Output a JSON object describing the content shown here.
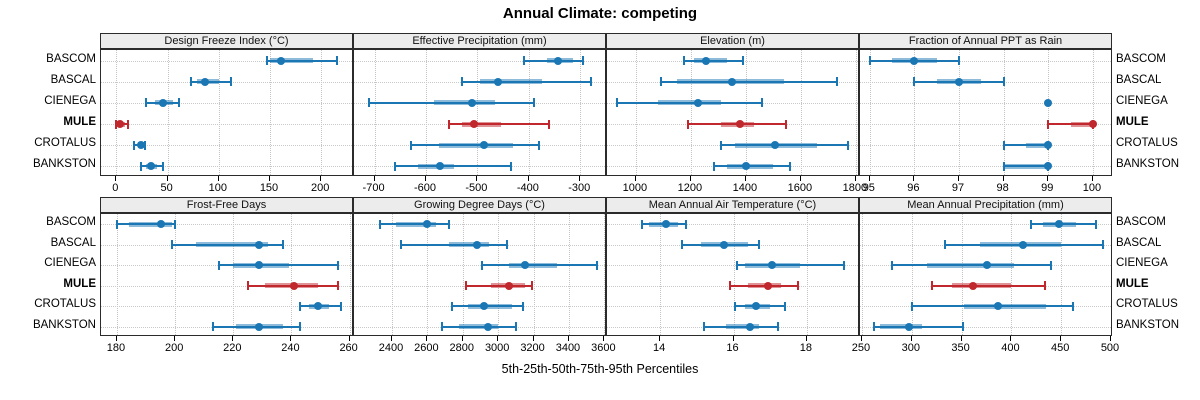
{
  "title": "Annual Climate: competing",
  "caption": "5th-25th-50th-75th-95th Percentiles",
  "colors": {
    "normal": "#1b77b4",
    "highlight": "#c0282d",
    "strip_bg": "#ececec",
    "grid": "#c3c3c3",
    "border": "#2b2b2b"
  },
  "chart_data": {
    "type": "dotplot",
    "title": "Annual Climate: competing",
    "xlabel": "5th-25th-50th-75th-95th Percentiles",
    "percentiles": [
      5,
      25,
      50,
      75,
      95
    ],
    "categories": [
      "BASCOM",
      "BASCAL",
      "CIENEGA",
      "MULE",
      "CROTALUS",
      "BANKSTON"
    ],
    "highlight": "MULE",
    "legend_position": "none",
    "grid": "dotted",
    "panels": [
      {
        "title": "Design Freeze Index (°C)",
        "row": 0,
        "col": 0,
        "xlim": [
          -15,
          232
        ],
        "xticks": [
          0,
          50,
          100,
          150,
          200
        ],
        "series": [
          {
            "name": "BASCOM",
            "values": [
              147,
              150,
              161,
              192,
              215
            ]
          },
          {
            "name": "BASCAL",
            "values": [
              73,
              79,
              87,
              100,
              112
            ]
          },
          {
            "name": "CIENEGA",
            "values": [
              29,
              38,
              46,
              55,
              61
            ]
          },
          {
            "name": "MULE",
            "values": [
              0,
              2,
              4,
              8,
              11
            ]
          },
          {
            "name": "CROTALUS",
            "values": [
              17,
              21,
              24,
              26,
              28
            ]
          },
          {
            "name": "BANKSTON",
            "values": [
              24,
              29,
              34,
              40,
              46
            ]
          }
        ]
      },
      {
        "title": "Effective Precipitation (mm)",
        "row": 0,
        "col": 1,
        "xlim": [
          -740,
          -248
        ],
        "xticks": [
          -700,
          -600,
          -500,
          -400,
          -300
        ],
        "series": [
          {
            "name": "BASCOM",
            "values": [
              -410,
              -365,
              -343,
              -315,
              -295
            ]
          },
          {
            "name": "BASCAL",
            "values": [
              -530,
              -495,
              -460,
              -375,
              -280
            ]
          },
          {
            "name": "CIENEGA",
            "values": [
              -710,
              -585,
              -510,
              -465,
              -390
            ]
          },
          {
            "name": "MULE",
            "values": [
              -555,
              -530,
              -507,
              -455,
              -360
            ]
          },
          {
            "name": "CROTALUS",
            "values": [
              -630,
              -575,
              -487,
              -430,
              -380
            ]
          },
          {
            "name": "BANKSTON",
            "values": [
              -660,
              -615,
              -572,
              -545,
              -435
            ]
          }
        ]
      },
      {
        "title": "Elevation (m)",
        "row": 0,
        "col": 2,
        "xlim": [
          895,
          1815
        ],
        "xticks": [
          1000,
          1200,
          1400,
          1600,
          1800
        ],
        "series": [
          {
            "name": "BASCOM",
            "values": [
              1175,
              1210,
              1255,
              1330,
              1390
            ]
          },
          {
            "name": "BASCAL",
            "values": [
              1090,
              1150,
              1350,
              1540,
              1730
            ]
          },
          {
            "name": "CIENEGA",
            "values": [
              930,
              1080,
              1225,
              1310,
              1460
            ]
          },
          {
            "name": "MULE",
            "values": [
              1190,
              1310,
              1380,
              1430,
              1545
            ]
          },
          {
            "name": "CROTALUS",
            "values": [
              1310,
              1360,
              1505,
              1660,
              1770
            ]
          },
          {
            "name": "BANKSTON",
            "values": [
              1285,
              1330,
              1400,
              1500,
              1560
            ]
          }
        ]
      },
      {
        "title": "Fraction of Annual PPT as Rain",
        "row": 0,
        "col": 3,
        "xlim": [
          94.78,
          100.45
        ],
        "xticks": [
          95,
          96,
          97,
          98,
          99,
          100
        ],
        "series": [
          {
            "name": "BASCOM",
            "values": [
              95,
              95.5,
              96,
              96.5,
              97
            ]
          },
          {
            "name": "BASCAL",
            "values": [
              96,
              96.5,
              97,
              97.5,
              98
            ]
          },
          {
            "name": "CIENEGA",
            "values": [
              99,
              99,
              99,
              99,
              99
            ]
          },
          {
            "name": "MULE",
            "values": [
              99,
              99.5,
              100,
              100,
              100
            ]
          },
          {
            "name": "CROTALUS",
            "values": [
              98,
              98.5,
              99,
              99,
              99
            ]
          },
          {
            "name": "BANKSTON",
            "values": [
              98,
              98,
              99,
              99,
              99
            ]
          }
        ]
      },
      {
        "title": "Frost-Free Days",
        "row": 1,
        "col": 0,
        "xlim": [
          174.5,
          261.5
        ],
        "xticks": [
          180,
          200,
          220,
          240,
          260
        ],
        "series": [
          {
            "name": "BASCOM",
            "values": [
              180,
              184,
              195,
              199,
              200
            ]
          },
          {
            "name": "BASCAL",
            "values": [
              199,
              207,
              229,
              232,
              237
            ]
          },
          {
            "name": "CIENEGA",
            "values": [
              215,
              220,
              229,
              239,
              256
            ]
          },
          {
            "name": "MULE",
            "values": [
              225,
              231,
              241,
              249,
              256
            ]
          },
          {
            "name": "CROTALUS",
            "values": [
              243,
              246,
              249,
              253,
              257
            ]
          },
          {
            "name": "BANKSTON",
            "values": [
              213,
              221,
              229,
              237,
              243
            ]
          }
        ]
      },
      {
        "title": "Growing Degree Days (°C)",
        "row": 1,
        "col": 1,
        "xlim": [
          2185,
          3615
        ],
        "xticks": [
          2400,
          2600,
          2800,
          3000,
          3200,
          3400,
          3600
        ],
        "series": [
          {
            "name": "BASCOM",
            "values": [
              2330,
              2420,
              2600,
              2650,
              2720
            ]
          },
          {
            "name": "BASCAL",
            "values": [
              2450,
              2720,
              2880,
              2950,
              3050
            ]
          },
          {
            "name": "CIENEGA",
            "values": [
              2910,
              3060,
              3150,
              3330,
              3560
            ]
          },
          {
            "name": "MULE",
            "values": [
              2820,
              2960,
              3060,
              3150,
              3190
            ]
          },
          {
            "name": "CROTALUS",
            "values": [
              2740,
              2830,
              2920,
              3080,
              3140
            ]
          },
          {
            "name": "BANKSTON",
            "values": [
              2680,
              2780,
              2940,
              3000,
              3100
            ]
          }
        ]
      },
      {
        "title": "Mean Annual Air Temperature (°C)",
        "row": 1,
        "col": 2,
        "xlim": [
          12.55,
          19.45
        ],
        "xticks": [
          14,
          16,
          18
        ],
        "series": [
          {
            "name": "BASCOM",
            "values": [
              13.5,
              13.7,
              14.15,
              14.5,
              14.7
            ]
          },
          {
            "name": "BASCAL",
            "values": [
              14.6,
              15.1,
              15.75,
              16.4,
              16.7
            ]
          },
          {
            "name": "CIENEGA",
            "values": [
              16.1,
              16.3,
              17.05,
              17.8,
              19.0
            ]
          },
          {
            "name": "MULE",
            "values": [
              15.9,
              16.4,
              16.95,
              17.3,
              17.75
            ]
          },
          {
            "name": "CROTALUS",
            "values": [
              16.05,
              16.3,
              16.6,
              17.0,
              17.4
            ]
          },
          {
            "name": "BANKSTON",
            "values": [
              15.2,
              15.8,
              16.45,
              16.7,
              17.2
            ]
          }
        ]
      },
      {
        "title": "Mean Annual Precipitation (mm)",
        "row": 1,
        "col": 3,
        "xlim": [
          248,
          502
        ],
        "xticks": [
          250,
          300,
          350,
          400,
          450,
          500
        ],
        "series": [
          {
            "name": "BASCOM",
            "values": [
              420,
              432,
              448,
              465,
              485
            ]
          },
          {
            "name": "BASCAL",
            "values": [
              333,
              368,
              412,
              450,
              492
            ]
          },
          {
            "name": "CIENEGA",
            "values": [
              280,
              315,
              375,
              403,
              440
            ]
          },
          {
            "name": "MULE",
            "values": [
              320,
              340,
              361,
              400,
              434
            ]
          },
          {
            "name": "CROTALUS",
            "values": [
              300,
              352,
              387,
              435,
              462
            ]
          },
          {
            "name": "BANKSTON",
            "values": [
              262,
              268,
              297,
              310,
              351
            ]
          }
        ]
      }
    ]
  }
}
